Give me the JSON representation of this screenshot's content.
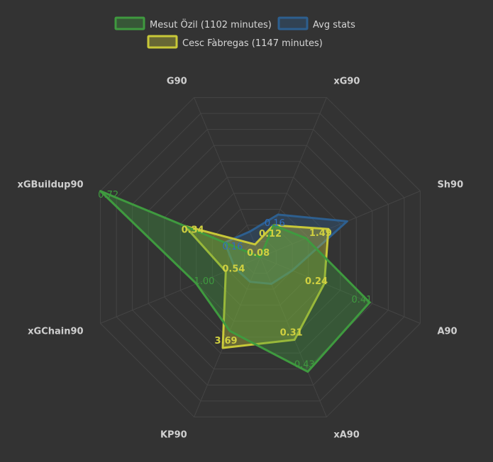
{
  "chart_data": {
    "type": "radar",
    "axes": [
      "G90",
      "xG90",
      "Sh90",
      "A90",
      "xA90",
      "KP90",
      "xGChain90",
      "xGBuildup90"
    ],
    "series": [
      {
        "name": "Mesut Özil (1102 minutes)",
        "stroke": "#3f9a3f",
        "fill": "#3f9a3f",
        "label_color": "#3f9a3f",
        "values": [
          0.0,
          0.12,
          1.0,
          0.41,
          0.43,
          3.0,
          1.0,
          0.72
        ],
        "labels": [
          "",
          "",
          "",
          "0.41",
          "0.43",
          "",
          "1.00",
          "0.72"
        ]
      },
      {
        "name": "Avg stats",
        "stroke": "#2d5f8f",
        "fill": "#2d5f8f",
        "label_color": "#2f6fbf",
        "values": [
          0.16,
          0.16,
          1.9,
          0.12,
          0.1,
          1.0,
          0.4,
          0.16
        ],
        "labels": [
          "",
          "0.16",
          "",
          "",
          "",
          "",
          "",
          "0.16"
        ]
      },
      {
        "name": "Cesc Fàbregas (1147 minutes)",
        "stroke": "#c8c838",
        "fill": "#c8c838",
        "label_color": "#d0d040",
        "values": [
          0.08,
          0.12,
          1.49,
          0.24,
          0.31,
          3.69,
          0.54,
          0.34
        ],
        "labels": [
          "0.08",
          "0.12",
          "1.49",
          "0.24",
          "0.31",
          "3.69",
          "0.54",
          "0.34"
        ]
      }
    ],
    "legend": "top"
  }
}
